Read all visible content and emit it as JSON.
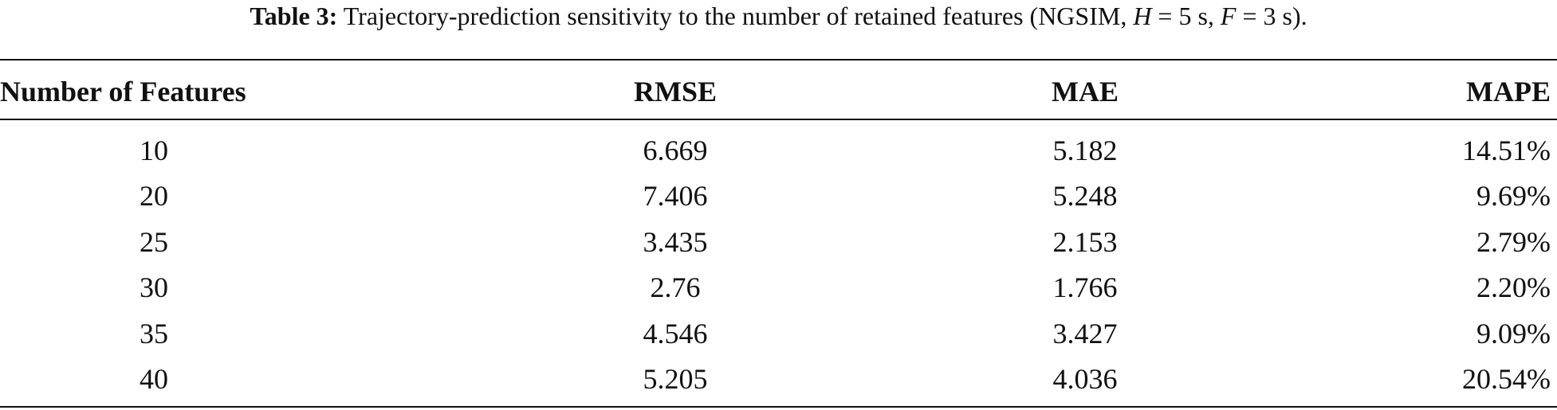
{
  "caption": {
    "label": "Table 3:",
    "segments": [
      {
        "text": " Trajectory-prediction sensitivity to the number of retained features (NGSIM, ",
        "italic": false
      },
      {
        "text": "H",
        "italic": true
      },
      {
        "text": " = 5 s, ",
        "italic": false
      },
      {
        "text": "F",
        "italic": true
      },
      {
        "text": " = 3 s).",
        "italic": false
      }
    ]
  },
  "table": {
    "headers": [
      "Number of Features",
      "RMSE",
      "MAE",
      "MAPE"
    ],
    "rows": [
      [
        "10",
        "6.669",
        "5.182",
        "14.51%"
      ],
      [
        "20",
        "7.406",
        "5.248",
        "9.69%"
      ],
      [
        "25",
        "3.435",
        "2.153",
        "2.79%"
      ],
      [
        "30",
        "2.76",
        "1.766",
        "2.20%"
      ],
      [
        "35",
        "4.546",
        "3.427",
        "9.09%"
      ],
      [
        "40",
        "5.205",
        "4.036",
        "20.54%"
      ]
    ]
  }
}
